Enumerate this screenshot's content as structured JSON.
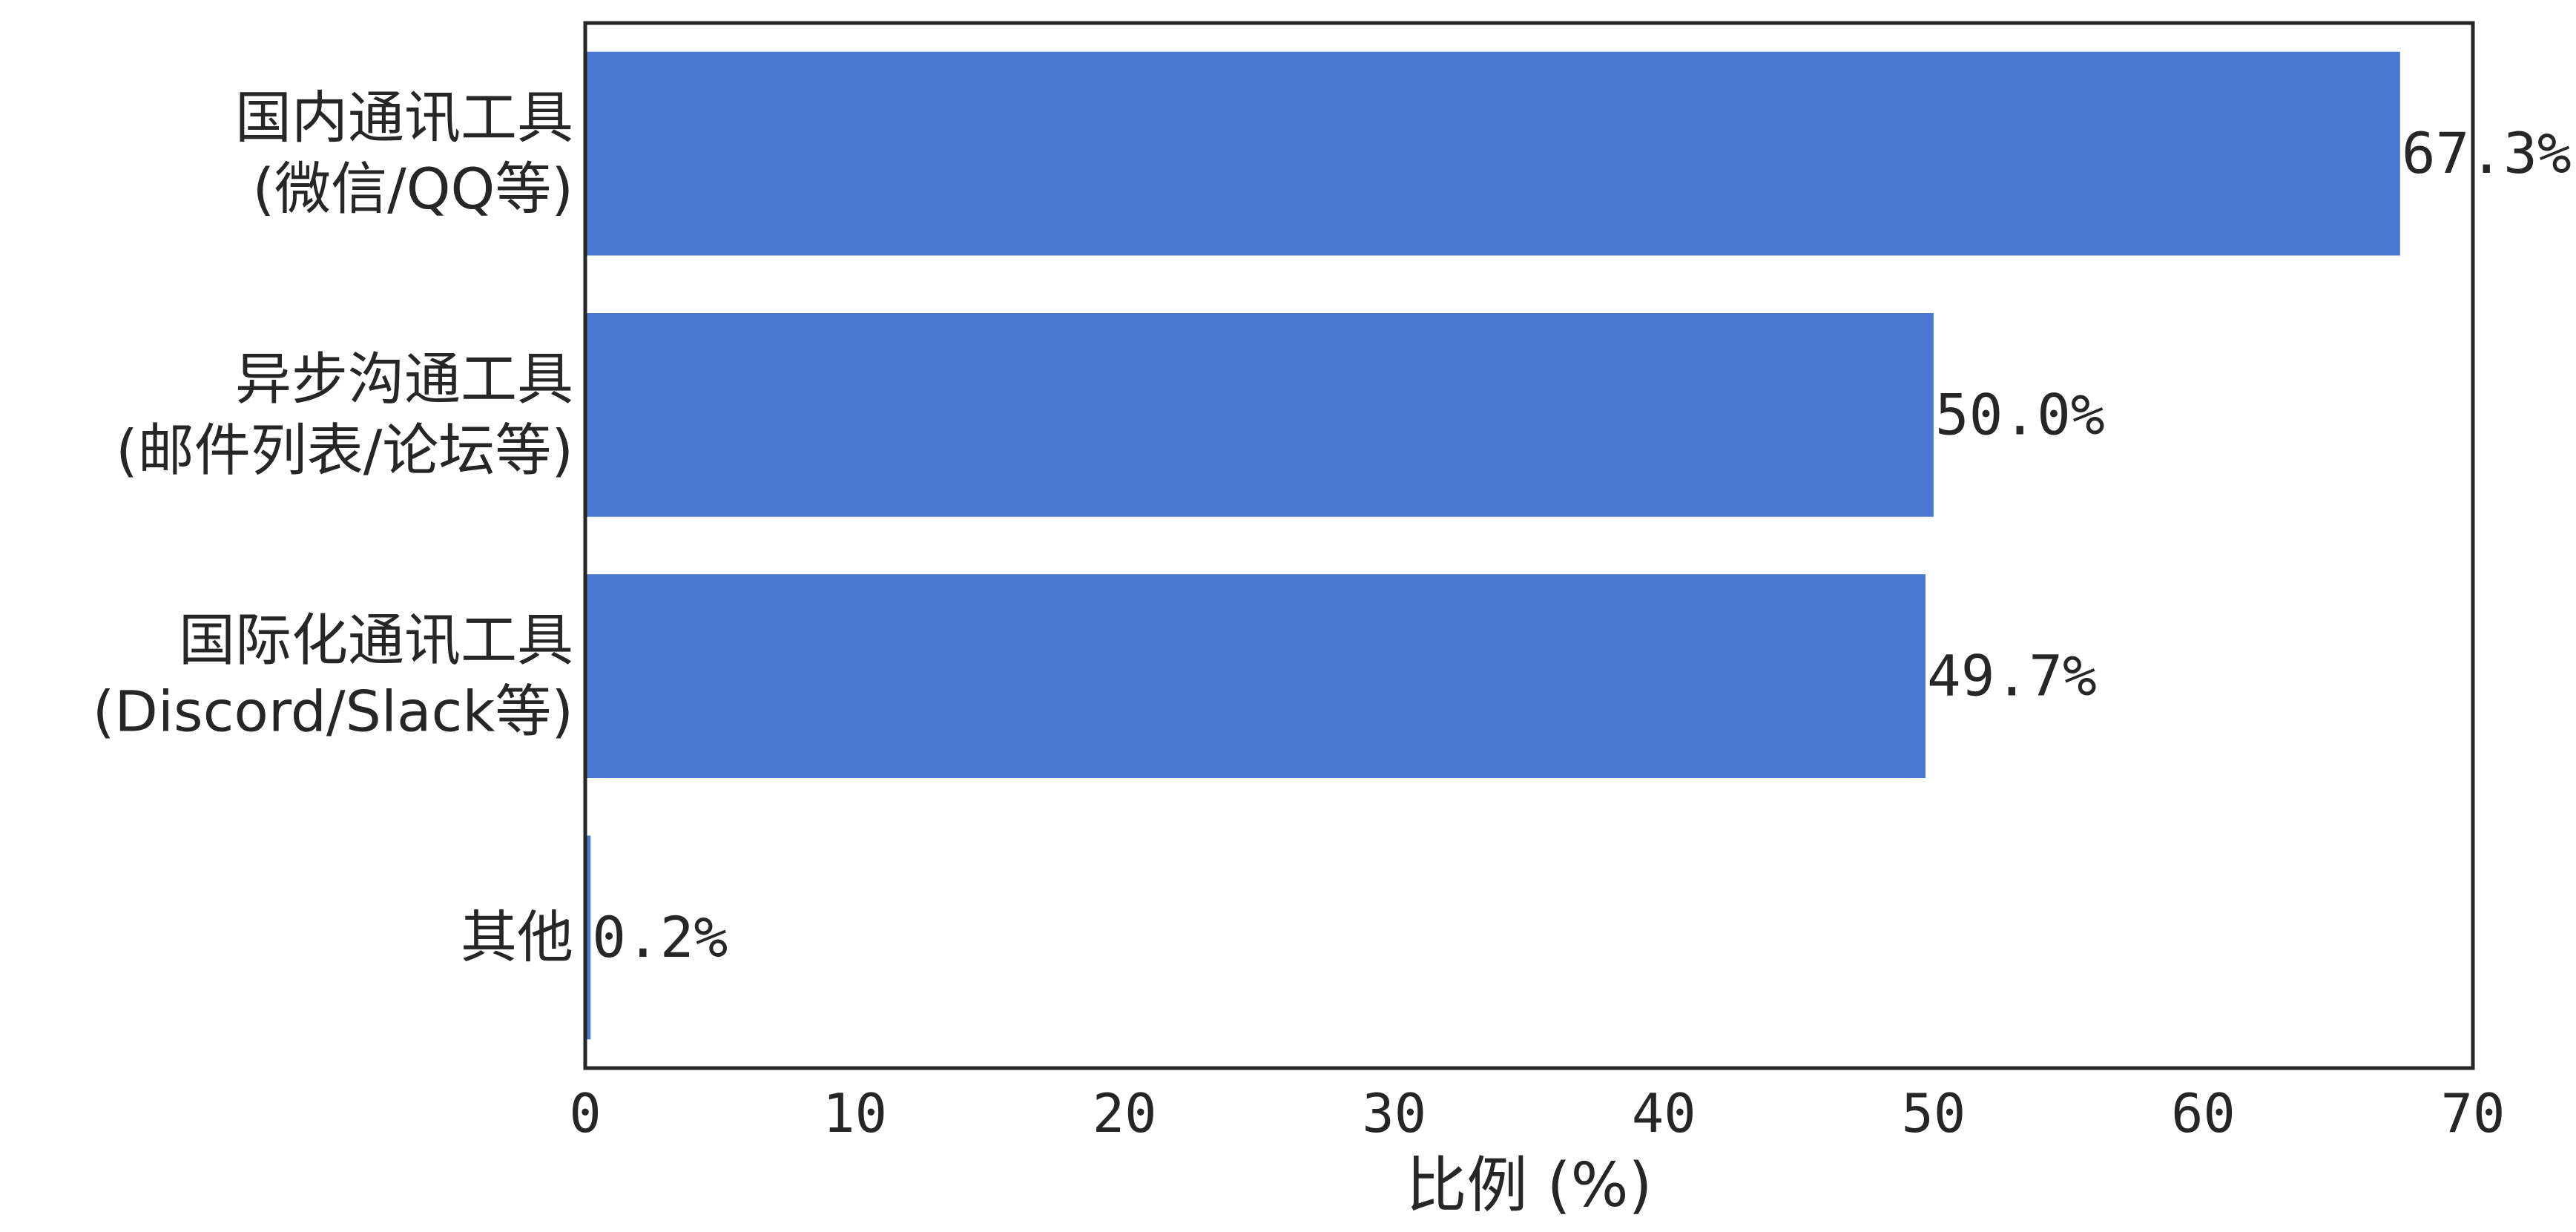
{
  "chart_data": {
    "type": "bar",
    "orientation": "horizontal",
    "categories": [
      [
        "国内通讯工具",
        "(微信/QQ等)"
      ],
      [
        "异步沟通工具",
        "(邮件列表/论坛等)"
      ],
      [
        "国际化通讯工具",
        "(Discord/Slack等)"
      ],
      [
        "其他"
      ]
    ],
    "values": [
      67.3,
      50.0,
      49.7,
      0.2
    ],
    "value_labels": [
      "67.3%",
      "50.0%",
      "49.7%",
      "0.2%"
    ],
    "xlabel": "比例 (%)",
    "ylabel": "",
    "xlim": [
      0,
      70
    ],
    "xticks": [
      0,
      10,
      20,
      30,
      40,
      50,
      60,
      70
    ],
    "xtick_labels": [
      "0",
      "10",
      "20",
      "30",
      "40",
      "50",
      "60",
      "70"
    ],
    "grid": false,
    "bar_color": "#4878cf",
    "axis_color": "#262626"
  }
}
